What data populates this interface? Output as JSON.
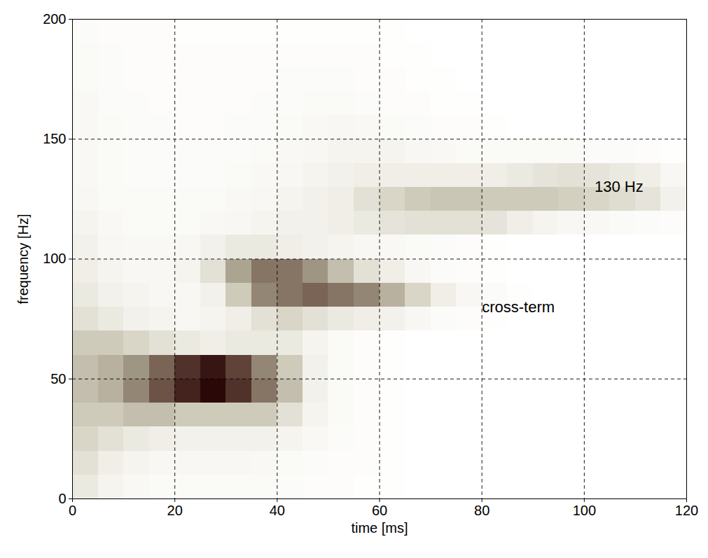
{
  "chart_data": {
    "type": "heatmap",
    "x_label": "time [ms]",
    "y_label": "frequency [Hz]",
    "xlim": [
      0,
      120
    ],
    "ylim": [
      0,
      200
    ],
    "xticks": [
      0,
      20,
      40,
      60,
      80,
      100,
      120
    ],
    "yticks": [
      0,
      50,
      100,
      150,
      200
    ],
    "grid": true,
    "annotations": [
      {
        "text": "130 Hz",
        "x": 102,
        "y": 130
      },
      {
        "text": "cross-term",
        "x": 80,
        "y": 80
      }
    ],
    "cells": {
      "x_bins": [
        0,
        5,
        10,
        15,
        20,
        25,
        30,
        35,
        40,
        45,
        50,
        55,
        60,
        65,
        70,
        75,
        80,
        85,
        90,
        95,
        100,
        105,
        110,
        115,
        120
      ],
      "y_bins": [
        0,
        10,
        20,
        30,
        40,
        50,
        60,
        70,
        80,
        90,
        100,
        110,
        120,
        130,
        140,
        150,
        160,
        170,
        180,
        190,
        200
      ],
      "values": [
        [
          0.15,
          0.08,
          0.05,
          0.04,
          0.04,
          0.04,
          0.04,
          0.04,
          0.03,
          0.02,
          0.02,
          0.01,
          0.01,
          0,
          0,
          0,
          0,
          0,
          0,
          0,
          0,
          0,
          0,
          0
        ],
        [
          0.2,
          0.12,
          0.08,
          0.06,
          0.06,
          0.06,
          0.06,
          0.05,
          0.04,
          0.03,
          0.02,
          0.02,
          0.01,
          0,
          0,
          0,
          0,
          0,
          0,
          0,
          0,
          0,
          0,
          0
        ],
        [
          0.25,
          0.2,
          0.15,
          0.12,
          0.1,
          0.1,
          0.1,
          0.1,
          0.08,
          0.05,
          0.03,
          0.02,
          0.01,
          0,
          0,
          0,
          0,
          0,
          0,
          0,
          0,
          0,
          0,
          0
        ],
        [
          0.3,
          0.3,
          0.35,
          0.35,
          0.3,
          0.3,
          0.3,
          0.3,
          0.2,
          0.08,
          0.04,
          0.02,
          0.01,
          0,
          0,
          0,
          0,
          0,
          0,
          0,
          0,
          0,
          0,
          0
        ],
        [
          0.35,
          0.4,
          0.55,
          0.7,
          0.85,
          0.95,
          0.8,
          0.6,
          0.35,
          0.1,
          0.04,
          0.02,
          0.01,
          0,
          0,
          0,
          0,
          0,
          0,
          0,
          0,
          0,
          0,
          0
        ],
        [
          0.35,
          0.4,
          0.5,
          0.65,
          0.8,
          0.9,
          0.75,
          0.55,
          0.3,
          0.1,
          0.04,
          0.02,
          0.01,
          0,
          0,
          0,
          0,
          0,
          0,
          0,
          0,
          0,
          0,
          0
        ],
        [
          0.3,
          0.3,
          0.25,
          0.2,
          0.15,
          0.12,
          0.15,
          0.15,
          0.15,
          0.08,
          0.04,
          0.02,
          0.01,
          0,
          0,
          0,
          0,
          0,
          0,
          0,
          0,
          0,
          0,
          0
        ],
        [
          0.2,
          0.15,
          0.1,
          0.08,
          0.06,
          0.08,
          0.12,
          0.2,
          0.25,
          0.2,
          0.15,
          0.12,
          0.1,
          0.06,
          0.03,
          0.02,
          0.01,
          0,
          0,
          0,
          0,
          0,
          0,
          0
        ],
        [
          0.15,
          0.1,
          0.08,
          0.06,
          0.06,
          0.1,
          0.3,
          0.55,
          0.6,
          0.65,
          0.6,
          0.55,
          0.4,
          0.25,
          0.12,
          0.06,
          0.03,
          0.01,
          0,
          0,
          0,
          0,
          0,
          0
        ],
        [
          0.12,
          0.08,
          0.06,
          0.06,
          0.08,
          0.2,
          0.45,
          0.6,
          0.6,
          0.5,
          0.35,
          0.2,
          0.12,
          0.06,
          0.03,
          0.02,
          0.01,
          0,
          0,
          0,
          0,
          0,
          0,
          0
        ],
        [
          0.1,
          0.06,
          0.05,
          0.05,
          0.06,
          0.1,
          0.15,
          0.15,
          0.12,
          0.1,
          0.08,
          0.06,
          0.05,
          0.04,
          0.03,
          0.02,
          0.01,
          0,
          0,
          0,
          0,
          0,
          0,
          0
        ],
        [
          0.08,
          0.05,
          0.04,
          0.04,
          0.04,
          0.05,
          0.06,
          0.08,
          0.1,
          0.1,
          0.12,
          0.15,
          0.18,
          0.2,
          0.2,
          0.2,
          0.18,
          0.12,
          0.08,
          0.06,
          0.05,
          0.04,
          0.03,
          0.02
        ],
        [
          0.06,
          0.04,
          0.04,
          0.04,
          0.04,
          0.04,
          0.05,
          0.06,
          0.08,
          0.1,
          0.12,
          0.2,
          0.25,
          0.3,
          0.32,
          0.32,
          0.3,
          0.3,
          0.3,
          0.28,
          0.25,
          0.22,
          0.18,
          0.1
        ],
        [
          0.05,
          0.04,
          0.03,
          0.03,
          0.03,
          0.03,
          0.04,
          0.05,
          0.06,
          0.08,
          0.1,
          0.12,
          0.12,
          0.12,
          0.12,
          0.12,
          0.12,
          0.15,
          0.18,
          0.2,
          0.18,
          0.15,
          0.12,
          0.06
        ],
        [
          0.05,
          0.04,
          0.03,
          0.03,
          0.03,
          0.03,
          0.03,
          0.04,
          0.05,
          0.06,
          0.08,
          0.08,
          0.08,
          0.06,
          0.05,
          0.04,
          0.04,
          0.04,
          0.04,
          0.04,
          0.03,
          0.03,
          0.02,
          0.01
        ],
        [
          0.05,
          0.04,
          0.03,
          0.03,
          0.02,
          0.02,
          0.03,
          0.03,
          0.04,
          0.05,
          0.06,
          0.05,
          0.04,
          0.03,
          0.02,
          0.02,
          0.01,
          0,
          0,
          0,
          0,
          0,
          0,
          0
        ],
        [
          0.05,
          0.03,
          0.03,
          0.02,
          0.02,
          0.02,
          0.02,
          0.03,
          0.03,
          0.04,
          0.04,
          0.03,
          0.02,
          0.02,
          0.01,
          0.01,
          0,
          0,
          0,
          0,
          0,
          0,
          0,
          0
        ],
        [
          0.04,
          0.03,
          0.02,
          0.02,
          0.02,
          0.02,
          0.02,
          0.02,
          0.03,
          0.03,
          0.03,
          0.02,
          0.02,
          0.01,
          0.01,
          0,
          0,
          0,
          0,
          0,
          0,
          0,
          0,
          0
        ],
        [
          0.04,
          0.03,
          0.02,
          0.02,
          0.02,
          0.02,
          0.02,
          0.02,
          0.02,
          0.02,
          0.02,
          0.02,
          0.01,
          0.01,
          0,
          0,
          0,
          0,
          0,
          0,
          0,
          0,
          0,
          0
        ],
        [
          0.03,
          0.02,
          0.02,
          0.02,
          0.01,
          0.01,
          0.01,
          0.01,
          0.01,
          0.01,
          0.01,
          0.01,
          0.01,
          0,
          0,
          0,
          0,
          0,
          0,
          0,
          0,
          0,
          0,
          0
        ]
      ]
    }
  }
}
